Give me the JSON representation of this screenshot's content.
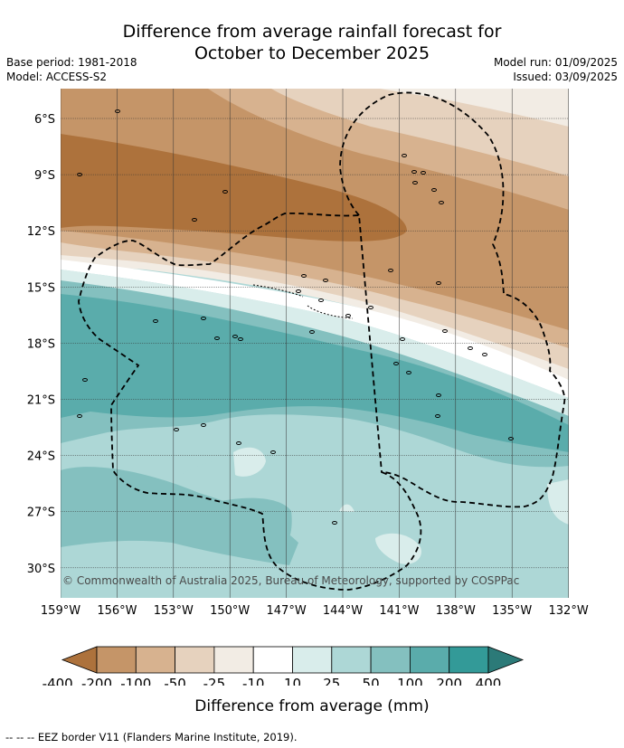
{
  "header": {
    "title_line1": "Difference from average rainfall forecast for",
    "title_line2": "October to December 2025",
    "base_period": "Base period: 1981-2018",
    "model": "Model: ACCESS-S2",
    "model_run": "Model run: 01/09/2025",
    "issued": "Issued: 03/09/2025"
  },
  "map": {
    "lat_labels": [
      "6°S",
      "9°S",
      "12°S",
      "15°S",
      "18°S",
      "21°S",
      "24°S",
      "27°S",
      "30°S"
    ],
    "lon_labels": [
      "159°W",
      "156°W",
      "153°W",
      "150°W",
      "147°W",
      "144°W",
      "141°W",
      "138°W",
      "135°W",
      "132°W"
    ],
    "copyright": "© Commonwealth of Australia 2025, Bureau of Meteorology, supported by COSPPac"
  },
  "colorbar": {
    "ticks": [
      "-400",
      "-200",
      "-100",
      "-50",
      "-25",
      "-10",
      "10",
      "25",
      "50",
      "100",
      "200",
      "400"
    ],
    "colors": [
      "#ad723c",
      "#c59568",
      "#d7b28f",
      "#e6d2be",
      "#f2ece4",
      "#ffffff",
      "#d9edeb",
      "#add7d6",
      "#84c0bf",
      "#5aacab",
      "#339a98",
      "#2c7a78"
    ],
    "label": "Difference from average (mm)"
  },
  "footnote": "--  --  -- EEZ border V11 (Flanders Marine Institute, 2019)."
}
